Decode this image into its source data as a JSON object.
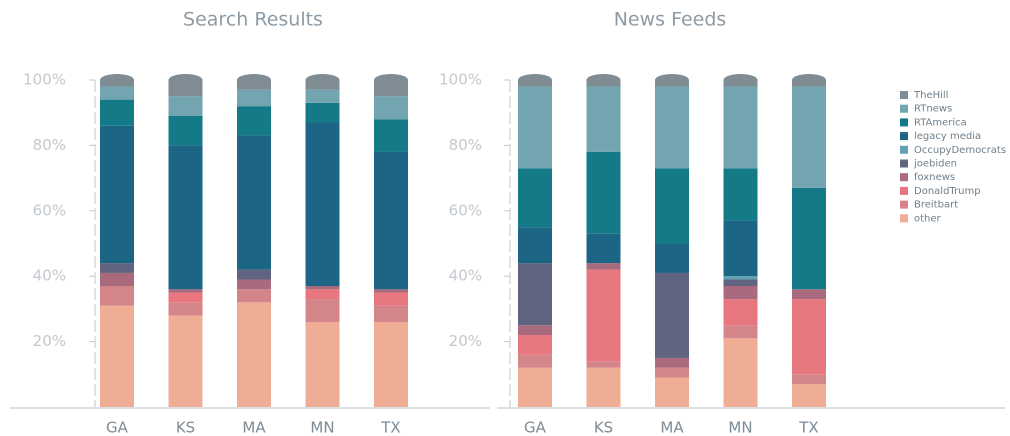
{
  "chart_data": [
    {
      "type": "bar",
      "stacked": true,
      "title": "Search Results",
      "categories": [
        "GA",
        "KS",
        "MA",
        "MN",
        "TX"
      ],
      "ylim": [
        0,
        100
      ],
      "yticks": [
        {
          "value": 20,
          "label": "20%"
        },
        {
          "value": 40,
          "label": "40%"
        },
        {
          "value": 60,
          "label": "60%"
        },
        {
          "value": 80,
          "label": "80%"
        },
        {
          "value": 100,
          "label": "100%"
        }
      ],
      "series": [
        {
          "name": "other",
          "color": "#f0ad96",
          "values": [
            31,
            28,
            32,
            26,
            26
          ]
        },
        {
          "name": "Breitbart",
          "color": "#d4858a",
          "values": [
            6,
            4,
            4,
            7,
            5
          ]
        },
        {
          "name": "DonaldTrump",
          "color": "#e8767f",
          "values": [
            0,
            3,
            0,
            3,
            4
          ]
        },
        {
          "name": "foxnews",
          "color": "#a86a7c",
          "values": [
            4,
            1,
            3,
            1,
            1
          ]
        },
        {
          "name": "joebiden",
          "color": "#616480",
          "values": [
            3,
            0,
            3,
            0,
            0
          ]
        },
        {
          "name": "OccupyDemocrats",
          "color": "#5fa3b5",
          "values": [
            0,
            0,
            0,
            0,
            0
          ]
        },
        {
          "name": "legacy media",
          "color": "#1c6585",
          "values": [
            42,
            44,
            41,
            50,
            42
          ]
        },
        {
          "name": "RTAmerica",
          "color": "#147a88",
          "values": [
            8,
            9,
            9,
            6,
            10
          ]
        },
        {
          "name": "RTnews",
          "color": "#72a5b0",
          "values": [
            4,
            6,
            5,
            4,
            7
          ]
        },
        {
          "name": "TheHill",
          "color": "#7f8c94",
          "values": [
            2,
            5,
            3,
            3,
            5
          ]
        }
      ]
    },
    {
      "type": "bar",
      "stacked": true,
      "title": "News Feeds",
      "categories": [
        "GA",
        "KS",
        "MA",
        "MN",
        "TX"
      ],
      "ylim": [
        0,
        100
      ],
      "yticks": [
        {
          "value": 20,
          "label": "20%"
        },
        {
          "value": 40,
          "label": "40%"
        },
        {
          "value": 60,
          "label": "60%"
        },
        {
          "value": 80,
          "label": "80%"
        },
        {
          "value": 100,
          "label": "100%"
        }
      ],
      "series": [
        {
          "name": "other",
          "color": "#f0ad96",
          "values": [
            12,
            12,
            9,
            21,
            7
          ]
        },
        {
          "name": "Breitbart",
          "color": "#d4858a",
          "values": [
            4,
            2,
            3,
            4,
            3
          ]
        },
        {
          "name": "DonaldTrump",
          "color": "#e8767f",
          "values": [
            6,
            28,
            0,
            8,
            23
          ]
        },
        {
          "name": "foxnews",
          "color": "#a86a7c",
          "values": [
            3,
            2,
            3,
            4,
            3
          ]
        },
        {
          "name": "joebiden",
          "color": "#616480",
          "values": [
            19,
            0,
            26,
            2,
            0
          ]
        },
        {
          "name": "OccupyDemocrats",
          "color": "#5fa3b5",
          "values": [
            0,
            0,
            0,
            1,
            0
          ]
        },
        {
          "name": "legacy media",
          "color": "#1c6585",
          "values": [
            11,
            9,
            9,
            17,
            0
          ]
        },
        {
          "name": "RTAmerica",
          "color": "#147a88",
          "values": [
            18,
            25,
            23,
            16,
            31
          ]
        },
        {
          "name": "RTnews",
          "color": "#72a5b0",
          "values": [
            25,
            20,
            25,
            25,
            31
          ]
        },
        {
          "name": "TheHill",
          "color": "#7f8c94",
          "values": [
            2,
            2,
            2,
            2,
            2
          ]
        }
      ]
    }
  ]
}
